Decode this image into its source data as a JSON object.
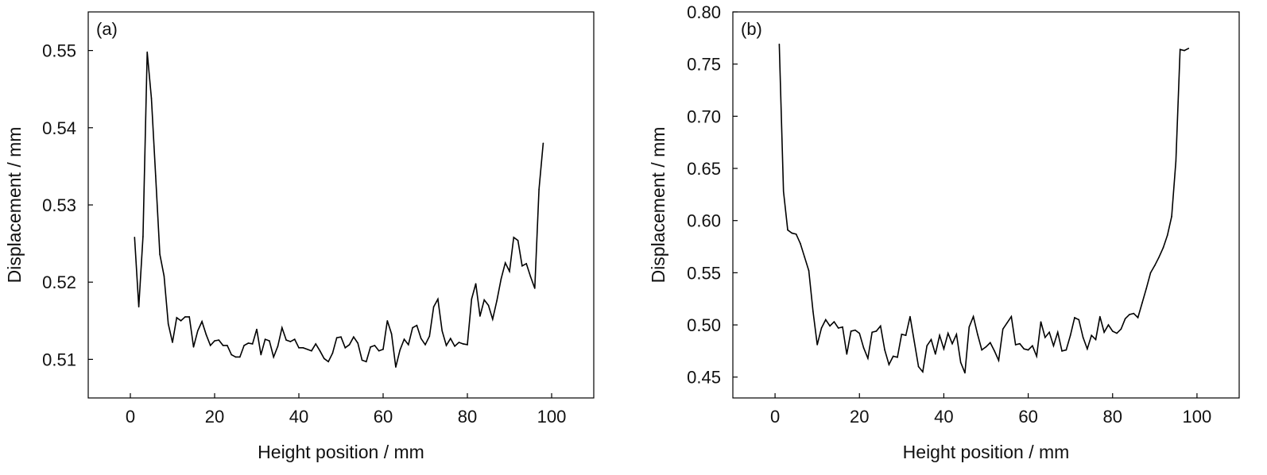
{
  "chart_data": [
    {
      "type": "line",
      "panel_label": "(a)",
      "xlabel": "Height position / mm",
      "ylabel": "Displacement / mm",
      "xlim": [
        -10,
        110
      ],
      "ylim": [
        0.505,
        0.555
      ],
      "xticks": [
        0,
        20,
        40,
        60,
        80,
        100
      ],
      "yticks": [
        0.51,
        0.52,
        0.53,
        0.54,
        0.55
      ],
      "ytick_labels": [
        "0.51",
        "0.52",
        "0.53",
        "0.54",
        "0.55"
      ],
      "grid": false,
      "series": [
        {
          "color": "#000000",
          "x": [
            1,
            2,
            3,
            4,
            5,
            6,
            7,
            8,
            9,
            10,
            11,
            12,
            13,
            14,
            15,
            16,
            17,
            18,
            19,
            20,
            21,
            22,
            23,
            24,
            25,
            26,
            27,
            28,
            29,
            30,
            31,
            32,
            33,
            34,
            35,
            36,
            37,
            38,
            39,
            40,
            41,
            42,
            43,
            44,
            45,
            46,
            47,
            48,
            49,
            50,
            51,
            52,
            53,
            54,
            55,
            56,
            57,
            58,
            59,
            60,
            61,
            62,
            63,
            64,
            65,
            66,
            67,
            68,
            69,
            70,
            71,
            72,
            73,
            74,
            75,
            76,
            77,
            78,
            79,
            80,
            81,
            82,
            83,
            84,
            85,
            86,
            87,
            88,
            89,
            90,
            91,
            92,
            93,
            94,
            95,
            96,
            97,
            98
          ],
          "y": [
            0.5258,
            0.5168,
            0.5259,
            0.5498,
            0.5438,
            0.5338,
            0.5236,
            0.5208,
            0.5146,
            0.5122,
            0.5154,
            0.515,
            0.5155,
            0.5155,
            0.5116,
            0.5137,
            0.5149,
            0.5132,
            0.5118,
            0.5124,
            0.5125,
            0.5118,
            0.5118,
            0.5106,
            0.5103,
            0.5103,
            0.5118,
            0.5121,
            0.512,
            0.5139,
            0.5106,
            0.5126,
            0.5124,
            0.5103,
            0.5117,
            0.5141,
            0.5125,
            0.5123,
            0.5126,
            0.5115,
            0.5115,
            0.5113,
            0.5111,
            0.512,
            0.5111,
            0.5101,
            0.5097,
            0.5108,
            0.5128,
            0.5129,
            0.5115,
            0.5119,
            0.5129,
            0.5121,
            0.5099,
            0.5097,
            0.5116,
            0.5118,
            0.5111,
            0.5113,
            0.515,
            0.5133,
            0.509,
            0.5112,
            0.5126,
            0.5119,
            0.5141,
            0.5144,
            0.5127,
            0.5119,
            0.513,
            0.5168,
            0.5178,
            0.5137,
            0.5118,
            0.5127,
            0.5117,
            0.5122,
            0.512,
            0.5119,
            0.5178,
            0.5198,
            0.5156,
            0.5177,
            0.517,
            0.5152,
            0.5176,
            0.5204,
            0.5225,
            0.5214,
            0.5258,
            0.5254,
            0.5221,
            0.5224,
            0.5207,
            0.5192,
            0.532,
            0.538
          ]
        }
      ]
    },
    {
      "type": "line",
      "panel_label": "(b)",
      "xlabel": "Height position / mm",
      "ylabel": "Displacement / mm",
      "xlim": [
        -10,
        110
      ],
      "ylim": [
        0.43,
        0.8
      ],
      "xticks": [
        0,
        20,
        40,
        60,
        80,
        100
      ],
      "yticks": [
        0.45,
        0.5,
        0.55,
        0.6,
        0.65,
        0.7,
        0.75,
        0.8
      ],
      "ytick_labels": [
        "0.45",
        "0.50",
        "0.55",
        "0.60",
        "0.65",
        "0.70",
        "0.75",
        "0.80"
      ],
      "grid": false,
      "series": [
        {
          "color": "#000000",
          "x": [
            1,
            2,
            3,
            4,
            5,
            6,
            7,
            8,
            9,
            10,
            11,
            12,
            13,
            14,
            15,
            16,
            17,
            18,
            19,
            20,
            21,
            22,
            23,
            24,
            25,
            26,
            27,
            28,
            29,
            30,
            31,
            32,
            33,
            34,
            35,
            36,
            37,
            38,
            39,
            40,
            41,
            42,
            43,
            44,
            45,
            46,
            47,
            48,
            49,
            50,
            51,
            52,
            53,
            54,
            55,
            56,
            57,
            58,
            59,
            60,
            61,
            62,
            63,
            64,
            65,
            66,
            67,
            68,
            69,
            70,
            71,
            72,
            73,
            74,
            75,
            76,
            77,
            78,
            79,
            80,
            81,
            82,
            83,
            84,
            85,
            86,
            87,
            88,
            89,
            90,
            91,
            92,
            93,
            94,
            95,
            96,
            97,
            98
          ],
          "y": [
            0.769,
            0.628,
            0.591,
            0.588,
            0.587,
            0.578,
            0.565,
            0.552,
            0.513,
            0.481,
            0.497,
            0.505,
            0.499,
            0.503,
            0.497,
            0.498,
            0.472,
            0.494,
            0.495,
            0.492,
            0.478,
            0.468,
            0.493,
            0.494,
            0.499,
            0.476,
            0.462,
            0.47,
            0.469,
            0.491,
            0.49,
            0.508,
            0.484,
            0.46,
            0.455,
            0.48,
            0.486,
            0.472,
            0.49,
            0.477,
            0.492,
            0.482,
            0.491,
            0.464,
            0.454,
            0.498,
            0.508,
            0.491,
            0.476,
            0.479,
            0.483,
            0.475,
            0.466,
            0.496,
            0.502,
            0.508,
            0.481,
            0.482,
            0.477,
            0.476,
            0.48,
            0.47,
            0.503,
            0.488,
            0.493,
            0.48,
            0.493,
            0.475,
            0.476,
            0.49,
            0.507,
            0.505,
            0.488,
            0.477,
            0.49,
            0.486,
            0.508,
            0.493,
            0.5,
            0.494,
            0.492,
            0.496,
            0.506,
            0.51,
            0.511,
            0.507,
            0.521,
            0.535,
            0.55,
            0.557,
            0.565,
            0.574,
            0.586,
            0.604,
            0.657,
            0.764,
            0.763,
            0.765
          ]
        }
      ]
    }
  ]
}
